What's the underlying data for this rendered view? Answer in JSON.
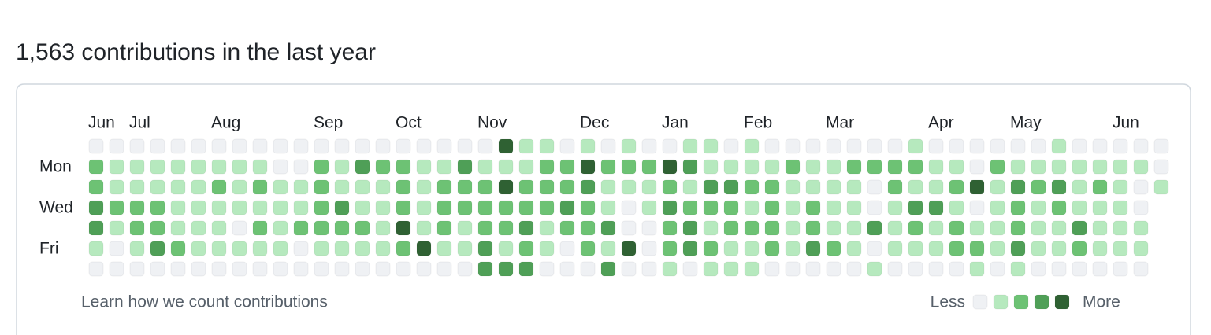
{
  "header": {
    "title": "1,563 contributions in the last year"
  },
  "graph": {
    "week_labels": [
      "Jun",
      null,
      "Jul",
      null,
      null,
      null,
      "Aug",
      null,
      null,
      null,
      null,
      "Sep",
      null,
      null,
      null,
      "Oct",
      null,
      null,
      null,
      "Nov",
      null,
      null,
      null,
      null,
      "Dec",
      null,
      null,
      null,
      "Jan",
      null,
      null,
      null,
      "Feb",
      null,
      null,
      null,
      "Mar",
      null,
      null,
      null,
      null,
      "Apr",
      null,
      null,
      null,
      "May",
      null,
      null,
      null,
      null,
      "Jun",
      null,
      null
    ],
    "day_labels": [
      null,
      "Mon",
      null,
      "Wed",
      null,
      "Fri",
      null
    ],
    "colors": [
      "#eff1f4",
      "#b6e9be",
      "#6dc274",
      "#4f9f57",
      "#2f6133"
    ],
    "weeks": [
      [
        0,
        2,
        2,
        3,
        3,
        1,
        0
      ],
      [
        0,
        1,
        1,
        2,
        1,
        0,
        0
      ],
      [
        0,
        1,
        1,
        2,
        2,
        1,
        0
      ],
      [
        0,
        1,
        1,
        2,
        2,
        3,
        0
      ],
      [
        0,
        1,
        1,
        1,
        1,
        2,
        0
      ],
      [
        0,
        1,
        1,
        1,
        1,
        1,
        0
      ],
      [
        0,
        1,
        2,
        1,
        1,
        1,
        0
      ],
      [
        0,
        1,
        1,
        1,
        0,
        1,
        0
      ],
      [
        0,
        1,
        2,
        1,
        2,
        1,
        0
      ],
      [
        0,
        0,
        1,
        1,
        1,
        1,
        0
      ],
      [
        0,
        0,
        1,
        1,
        2,
        0,
        0
      ],
      [
        0,
        2,
        2,
        2,
        2,
        1,
        0
      ],
      [
        0,
        1,
        1,
        3,
        2,
        1,
        0
      ],
      [
        0,
        3,
        1,
        1,
        2,
        1,
        0
      ],
      [
        0,
        2,
        1,
        1,
        1,
        1,
        0
      ],
      [
        0,
        2,
        2,
        2,
        4,
        2,
        0
      ],
      [
        0,
        1,
        1,
        1,
        1,
        4,
        0
      ],
      [
        0,
        1,
        2,
        2,
        2,
        1,
        0
      ],
      [
        0,
        3,
        2,
        2,
        1,
        1,
        0
      ],
      [
        0,
        1,
        2,
        2,
        2,
        3,
        3
      ],
      [
        4,
        1,
        4,
        2,
        2,
        1,
        3
      ],
      [
        1,
        1,
        2,
        2,
        3,
        2,
        3
      ],
      [
        1,
        2,
        2,
        2,
        1,
        1,
        0
      ],
      [
        0,
        2,
        2,
        3,
        2,
        0,
        0
      ],
      [
        1,
        4,
        3,
        2,
        2,
        2,
        0
      ],
      [
        0,
        2,
        1,
        1,
        3,
        1,
        3
      ],
      [
        1,
        2,
        1,
        0,
        0,
        4,
        0
      ],
      [
        0,
        2,
        1,
        1,
        0,
        0,
        0
      ],
      [
        0,
        4,
        2,
        3,
        2,
        2,
        1
      ],
      [
        1,
        3,
        1,
        2,
        3,
        3,
        0
      ],
      [
        1,
        1,
        3,
        2,
        1,
        2,
        1
      ],
      [
        0,
        1,
        3,
        2,
        2,
        1,
        1
      ],
      [
        1,
        1,
        2,
        1,
        2,
        1,
        1
      ],
      [
        0,
        1,
        2,
        2,
        2,
        2,
        0
      ],
      [
        0,
        2,
        1,
        1,
        1,
        1,
        0
      ],
      [
        0,
        1,
        1,
        2,
        2,
        3,
        0
      ],
      [
        0,
        1,
        1,
        1,
        1,
        2,
        0
      ],
      [
        0,
        2,
        1,
        1,
        1,
        1,
        0
      ],
      [
        0,
        2,
        0,
        0,
        3,
        0,
        1
      ],
      [
        0,
        2,
        2,
        1,
        1,
        1,
        0
      ],
      [
        1,
        2,
        1,
        3,
        2,
        1,
        0
      ],
      [
        0,
        1,
        1,
        3,
        1,
        1,
        0
      ],
      [
        0,
        1,
        2,
        1,
        2,
        2,
        0
      ],
      [
        0,
        0,
        4,
        0,
        1,
        2,
        1
      ],
      [
        0,
        2,
        1,
        1,
        1,
        1,
        0
      ],
      [
        0,
        1,
        3,
        2,
        2,
        3,
        1
      ],
      [
        0,
        1,
        2,
        1,
        1,
        1,
        0
      ],
      [
        1,
        1,
        3,
        2,
        1,
        1,
        0
      ],
      [
        0,
        1,
        1,
        1,
        3,
        2,
        0
      ],
      [
        0,
        1,
        2,
        1,
        1,
        1,
        0
      ],
      [
        0,
        1,
        1,
        1,
        1,
        1,
        0
      ],
      [
        0,
        1,
        0,
        0,
        1,
        1,
        0
      ],
      [
        0,
        0,
        1
      ]
    ]
  },
  "footer": {
    "link": "Learn how we count contributions",
    "less": "Less",
    "more": "More",
    "levels": [
      0,
      1,
      2,
      3,
      4
    ]
  }
}
